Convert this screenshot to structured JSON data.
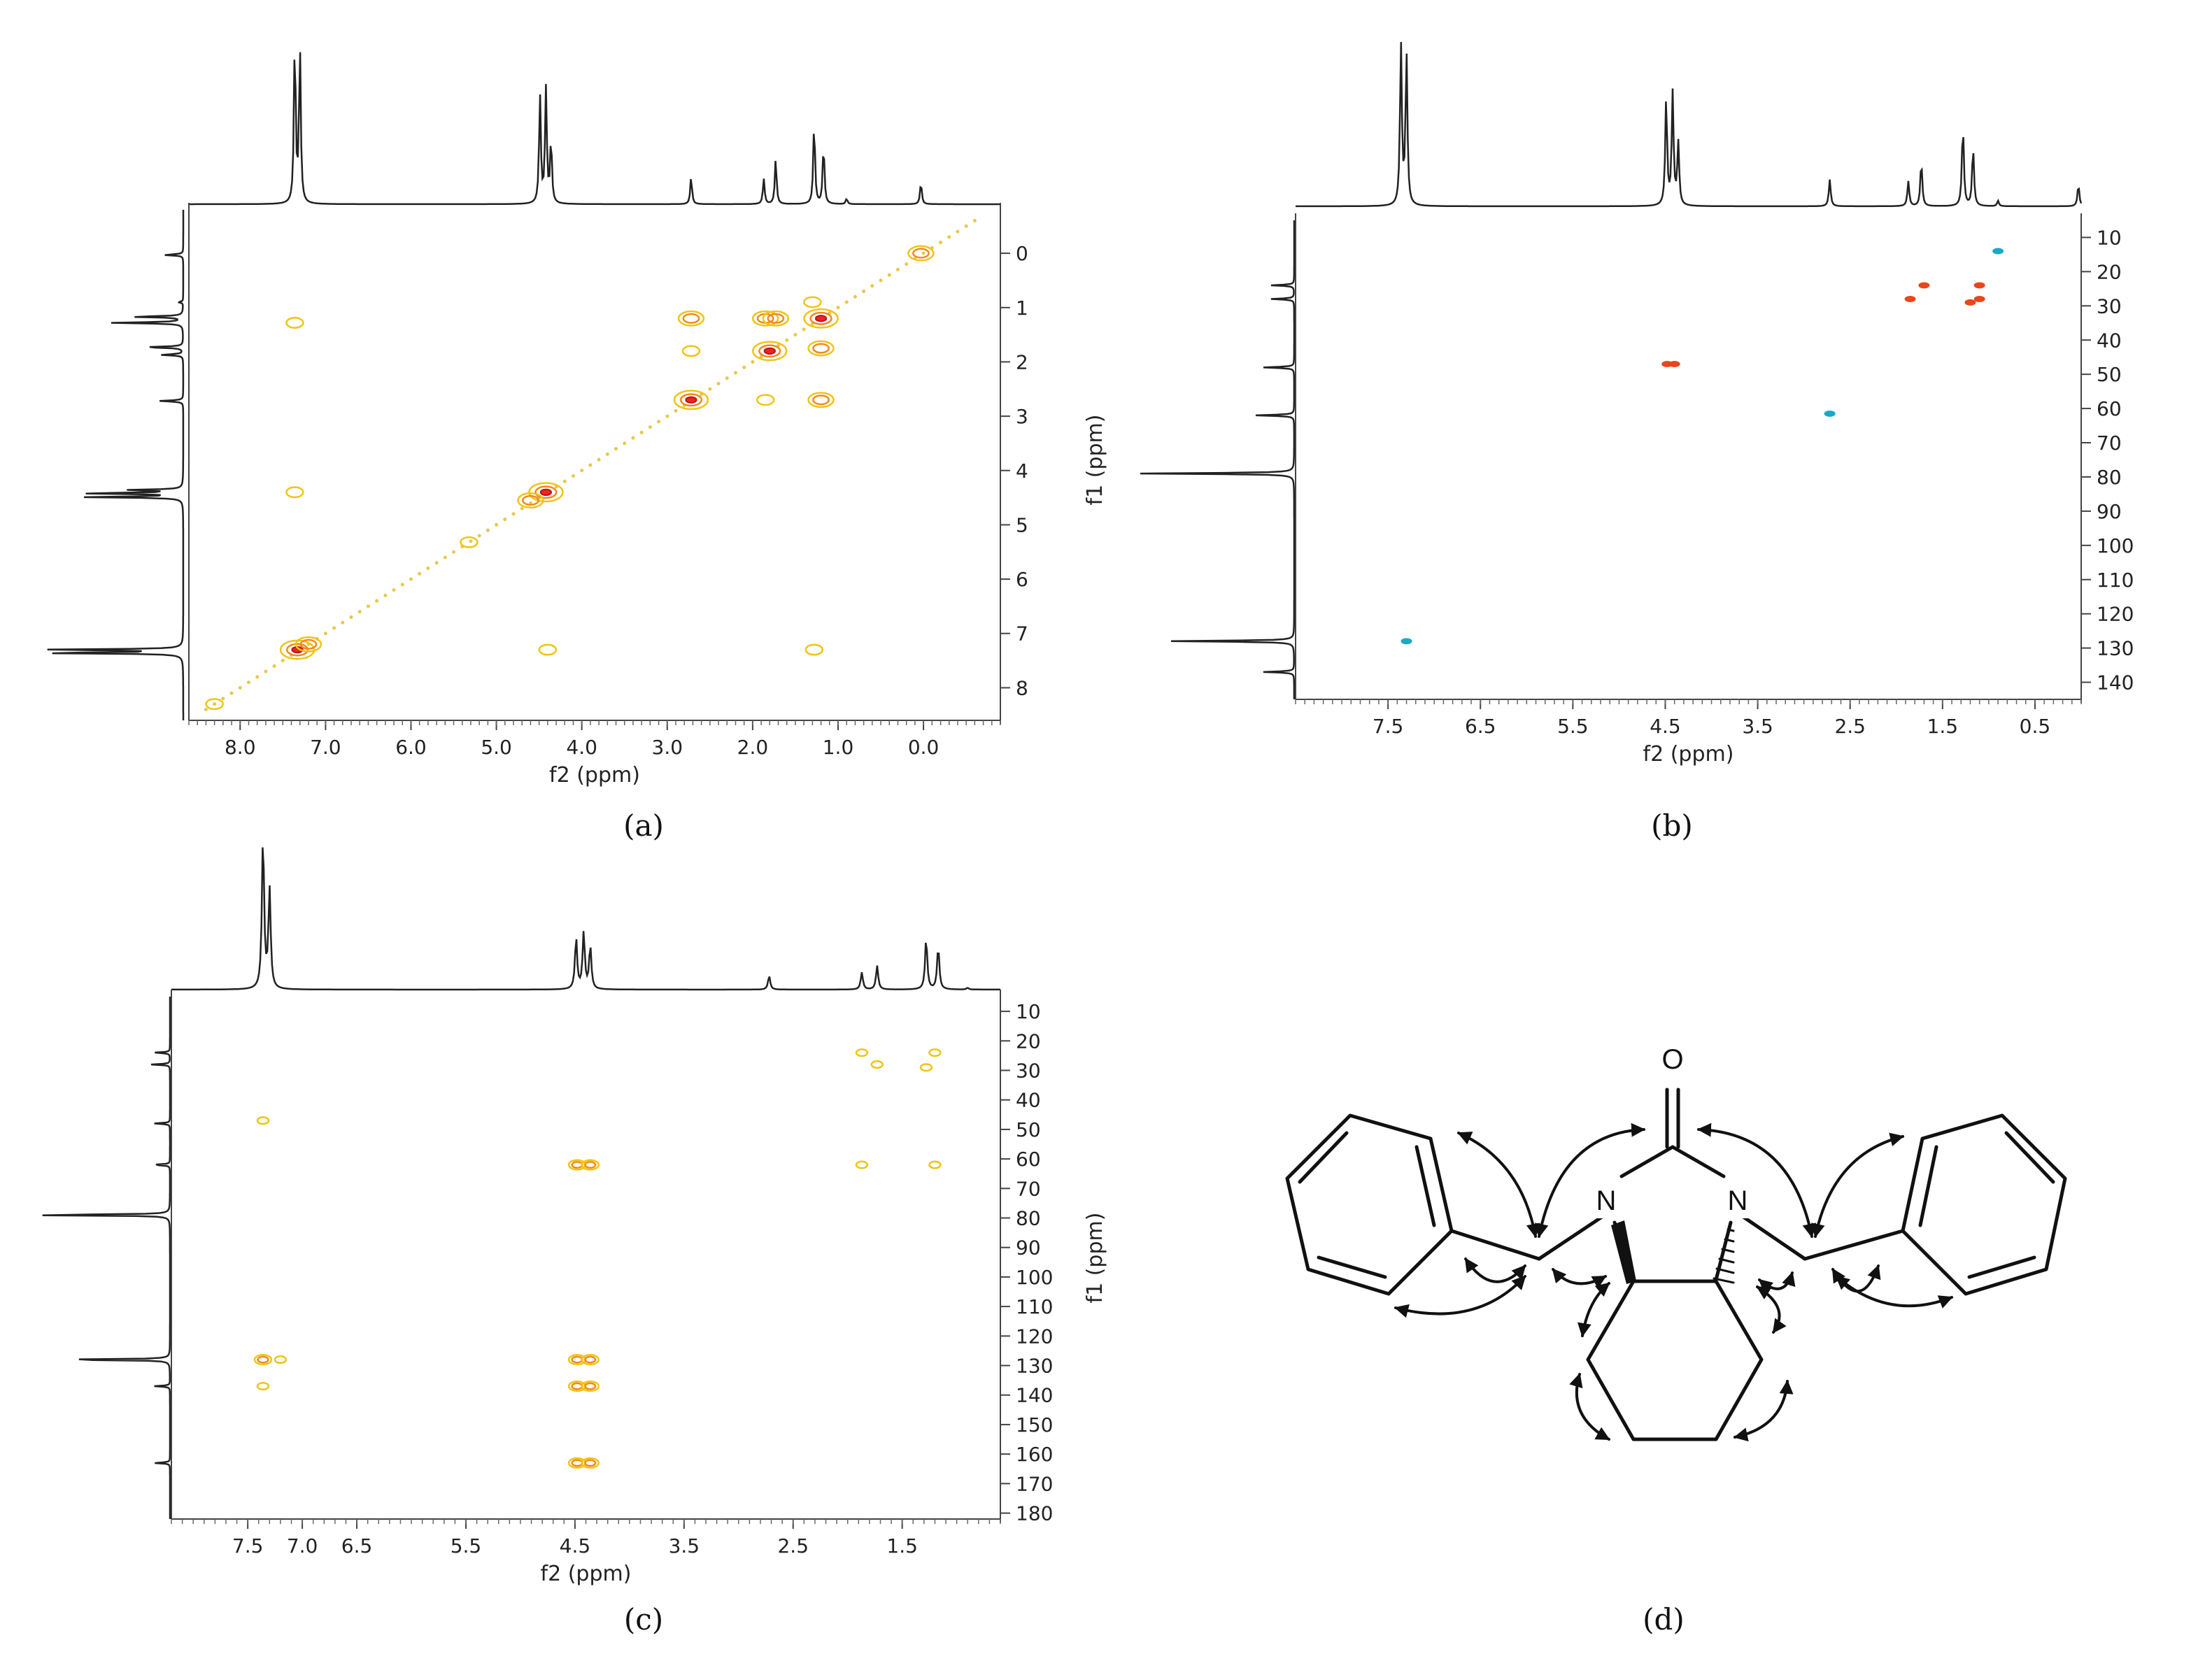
{
  "chart_data": [
    {
      "type": "scatter",
      "panel": "a",
      "caption": "(a)",
      "xlabel": "f2 (ppm)",
      "ylabel": "",
      "xlim": [
        8.6,
        -0.9
      ],
      "ylim": [
        -0.8,
        8.6
      ],
      "xticks": [
        "8.0",
        "7.0",
        "6.0",
        "5.0",
        "4.0",
        "3.0",
        "2.0",
        "1.0",
        "0.0"
      ],
      "xtick_values": [
        8,
        7,
        6,
        5,
        4,
        3,
        2,
        1,
        0
      ],
      "yticks": [
        "0",
        "1",
        "2",
        "3",
        "4",
        "5",
        "6",
        "7",
        "8"
      ],
      "ytick_values": [
        0,
        1,
        2,
        3,
        4,
        5,
        6,
        7,
        8
      ],
      "spectrum_peaks": [
        7.36,
        7.3,
        4.49,
        4.42,
        4.36,
        2.72,
        1.87,
        1.73,
        1.28,
        1.17,
        0.9,
        0.03
      ],
      "spectrum_heights": [
        0.9,
        0.85,
        0.6,
        0.63,
        0.35,
        0.15,
        0.14,
        0.25,
        0.45,
        0.33,
        0.03,
        0.12
      ],
      "cross_peaks": [
        {
          "x": 7.33,
          "y": 7.3,
          "s": 3
        },
        {
          "x": 7.2,
          "y": 7.2,
          "s": 2
        },
        {
          "x": 7.36,
          "y": 1.28,
          "s": 1
        },
        {
          "x": 7.36,
          "y": 4.4,
          "s": 1
        },
        {
          "x": 4.42,
          "y": 4.4,
          "s": 3
        },
        {
          "x": 4.6,
          "y": 4.55,
          "s": 2
        },
        {
          "x": 4.4,
          "y": 7.3,
          "s": 1
        },
        {
          "x": 2.72,
          "y": 1.2,
          "s": 2
        },
        {
          "x": 2.72,
          "y": 1.8,
          "s": 1
        },
        {
          "x": 2.72,
          "y": 2.7,
          "s": 3
        },
        {
          "x": 1.85,
          "y": 1.2,
          "s": 2
        },
        {
          "x": 1.73,
          "y": 1.2,
          "s": 2
        },
        {
          "x": 1.8,
          "y": 1.8,
          "s": 3
        },
        {
          "x": 1.85,
          "y": 2.7,
          "s": 1
        },
        {
          "x": 1.2,
          "y": 1.2,
          "s": 3
        },
        {
          "x": 1.2,
          "y": 1.75,
          "s": 2
        },
        {
          "x": 1.2,
          "y": 2.7,
          "s": 2
        },
        {
          "x": 1.3,
          "y": 0.9,
          "s": 1
        },
        {
          "x": 0.03,
          "y": 0.0,
          "s": 2
        },
        {
          "x": 5.32,
          "y": 5.32,
          "s": 1
        },
        {
          "x": 1.28,
          "y": 7.3,
          "s": 1
        },
        {
          "x": 8.3,
          "y": 8.3,
          "s": 1
        }
      ]
    },
    {
      "type": "scatter",
      "panel": "b",
      "caption": "(b)",
      "xlabel": "f2 (ppm)",
      "ylabel": "f1 (ppm)",
      "xlim": [
        8.5,
        0.0
      ],
      "ylim": [
        5,
        145
      ],
      "xticks": [
        "7.5",
        "6.5",
        "5.5",
        "4.5",
        "3.5",
        "2.5",
        "1.5",
        "0.5"
      ],
      "xtick_values": [
        7.5,
        6.5,
        5.5,
        4.5,
        3.5,
        2.5,
        1.5,
        0.5
      ],
      "yticks": [
        "10",
        "20",
        "30",
        "40",
        "50",
        "60",
        "70",
        "80",
        "90",
        "100",
        "110",
        "120",
        "130",
        "140"
      ],
      "ytick_values": [
        10,
        20,
        30,
        40,
        50,
        60,
        70,
        80,
        90,
        100,
        110,
        120,
        130,
        140
      ],
      "spectrum_peaks": [
        7.36,
        7.3,
        4.49,
        4.42,
        4.36,
        2.72,
        1.87,
        1.73,
        1.28,
        1.17,
        0.9,
        0.03
      ],
      "spectrum_heights": [
        0.9,
        0.85,
        0.6,
        0.63,
        0.35,
        0.15,
        0.14,
        0.25,
        0.45,
        0.33,
        0.03,
        0.12
      ],
      "f1_peaks": [
        24,
        28,
        48,
        62,
        79,
        128,
        137
      ],
      "f1_heights": [
        0.15,
        0.15,
        0.2,
        0.25,
        1.0,
        0.8,
        0.2
      ],
      "cross_peaks": [
        {
          "x": 1.7,
          "y": 24,
          "c": "red"
        },
        {
          "x": 1.1,
          "y": 24,
          "c": "red"
        },
        {
          "x": 1.85,
          "y": 28,
          "c": "red"
        },
        {
          "x": 1.1,
          "y": 28,
          "c": "red"
        },
        {
          "x": 1.2,
          "y": 29,
          "c": "red"
        },
        {
          "x": 4.4,
          "y": 47,
          "c": "red"
        },
        {
          "x": 4.48,
          "y": 47,
          "c": "red"
        },
        {
          "x": 2.72,
          "y": 61.5,
          "c": "blue"
        },
        {
          "x": 7.3,
          "y": 128,
          "c": "blue"
        },
        {
          "x": 0.9,
          "y": 14,
          "c": "blue"
        }
      ]
    },
    {
      "type": "scatter",
      "panel": "c",
      "caption": "(c)",
      "xlabel": "f2 (ppm)",
      "ylabel": "f1 (ppm)",
      "xlim": [
        8.2,
        0.6
      ],
      "ylim": [
        5,
        182
      ],
      "xticks": [
        "7.5",
        "7.0",
        "6.5",
        "5.5",
        "4.5",
        "3.5",
        "2.5",
        "1.5"
      ],
      "xtick_values": [
        7.5,
        7.0,
        6.5,
        5.5,
        4.5,
        3.5,
        2.5,
        1.5
      ],
      "yticks": [
        "10",
        "20",
        "30",
        "40",
        "50",
        "60",
        "70",
        "80",
        "90",
        "100",
        "110",
        "120",
        "130",
        "140",
        "150",
        "160",
        "170",
        "180"
      ],
      "ytick_values": [
        10,
        20,
        30,
        40,
        50,
        60,
        70,
        80,
        90,
        100,
        110,
        120,
        130,
        140,
        150,
        160,
        170,
        180
      ],
      "spectrum_peaks": [
        7.36,
        7.3,
        4.49,
        4.42,
        4.36,
        2.72,
        1.87,
        1.73,
        1.28,
        1.17,
        0.9
      ],
      "spectrum_heights": [
        0.9,
        0.58,
        0.3,
        0.33,
        0.25,
        0.08,
        0.1,
        0.14,
        0.3,
        0.25,
        0.01
      ],
      "f1_peaks": [
        24,
        28,
        48,
        62,
        79,
        128,
        137,
        163
      ],
      "f1_heights": [
        0.1,
        0.12,
        0.1,
        0.12,
        1.0,
        0.8,
        0.1,
        0.1
      ],
      "cross_peaks": [
        {
          "x": 7.36,
          "y": 47,
          "s": 1
        },
        {
          "x": 7.36,
          "y": 128,
          "s": 2
        },
        {
          "x": 7.36,
          "y": 137,
          "s": 1
        },
        {
          "x": 7.2,
          "y": 128,
          "s": 1
        },
        {
          "x": 4.48,
          "y": 62,
          "s": 2
        },
        {
          "x": 4.36,
          "y": 62,
          "s": 2
        },
        {
          "x": 4.48,
          "y": 128,
          "s": 2
        },
        {
          "x": 4.36,
          "y": 128,
          "s": 2
        },
        {
          "x": 4.48,
          "y": 137,
          "s": 2
        },
        {
          "x": 4.36,
          "y": 137,
          "s": 2
        },
        {
          "x": 4.48,
          "y": 163,
          "s": 2
        },
        {
          "x": 4.36,
          "y": 163,
          "s": 2
        },
        {
          "x": 1.87,
          "y": 24,
          "s": 1
        },
        {
          "x": 1.73,
          "y": 28,
          "s": 1
        },
        {
          "x": 1.28,
          "y": 29,
          "s": 1
        },
        {
          "x": 1.2,
          "y": 24,
          "s": 1
        },
        {
          "x": 1.87,
          "y": 62,
          "s": 1
        },
        {
          "x": 1.2,
          "y": 62,
          "s": 1
        }
      ]
    }
  ],
  "structure": {
    "caption": "(d)",
    "atoms": {
      "oxygen": "O",
      "nitrogen_left": "N",
      "nitrogen_right": "N"
    }
  }
}
